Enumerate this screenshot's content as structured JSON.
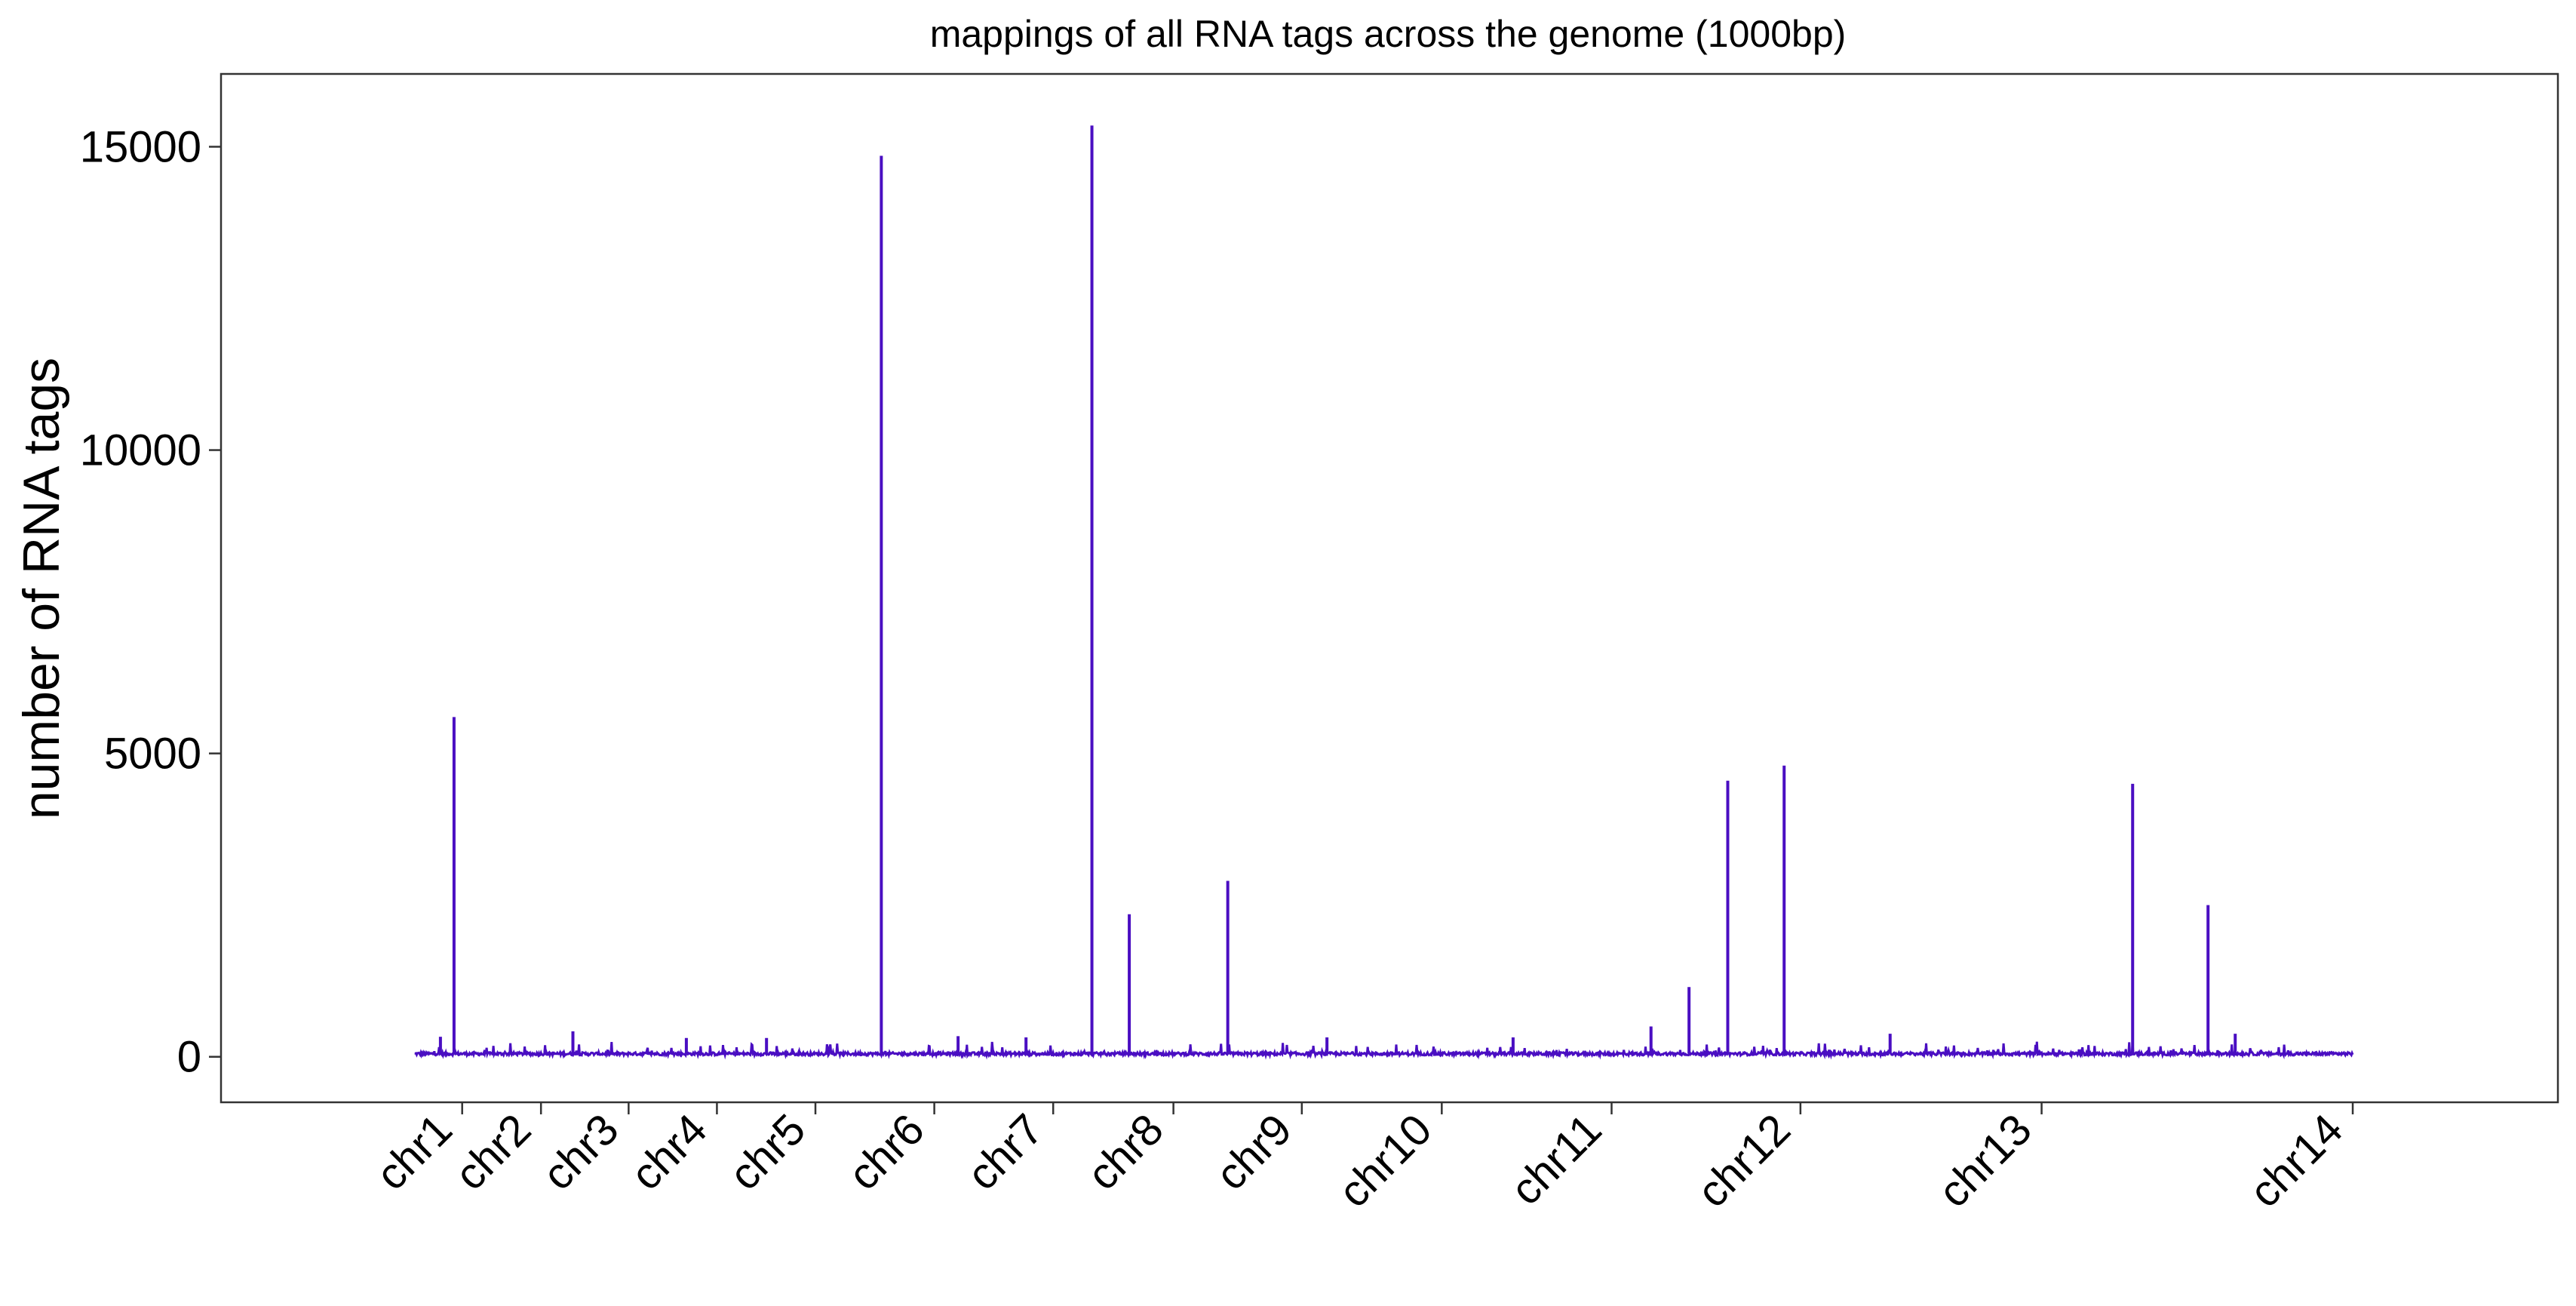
{
  "chart_data": {
    "type": "line",
    "title": "mappings of all RNA tags across the genome (1000bp)",
    "xlabel": "",
    "ylabel": "number of RNA tags",
    "ylim": [
      -750,
      16200
    ],
    "y_ticks": [
      0,
      5000,
      10000,
      15000
    ],
    "grid": false,
    "legend": "none",
    "line_color": "#4a0ec2",
    "x_unit": "1000bp bin index",
    "xlim": [
      -285,
      3155
    ],
    "chromosome_boundaries": [
      70,
      186,
      315,
      445,
      590,
      765,
      940,
      1117,
      1306,
      1512,
      1762,
      2040,
      2395,
      2853
    ],
    "x_tick_labels": [
      "chr1",
      "chr2",
      "chr3",
      "chr4",
      "chr5",
      "chr6",
      "chr7",
      "chr8",
      "chr9",
      "chr10",
      "chr11",
      "chr12",
      "chr13",
      "chr14"
    ],
    "baseline": 55,
    "peaks": [
      {
        "x": 58,
        "y": 5600
      },
      {
        "x": 38,
        "y": 330
      },
      {
        "x": 233,
        "y": 420
      },
      {
        "x": 400,
        "y": 310
      },
      {
        "x": 518,
        "y": 310
      },
      {
        "x": 687,
        "y": 14850
      },
      {
        "x": 800,
        "y": 340
      },
      {
        "x": 900,
        "y": 320
      },
      {
        "x": 997,
        "y": 15350
      },
      {
        "x": 1052,
        "y": 2350
      },
      {
        "x": 1197,
        "y": 2900
      },
      {
        "x": 1343,
        "y": 320
      },
      {
        "x": 1617,
        "y": 320
      },
      {
        "x": 1820,
        "y": 500
      },
      {
        "x": 1876,
        "y": 1150
      },
      {
        "x": 1933,
        "y": 4550
      },
      {
        "x": 2016,
        "y": 4800
      },
      {
        "x": 2172,
        "y": 380
      },
      {
        "x": 2529,
        "y": 4500
      },
      {
        "x": 2640,
        "y": 2500
      },
      {
        "x": 2680,
        "y": 380
      }
    ]
  }
}
